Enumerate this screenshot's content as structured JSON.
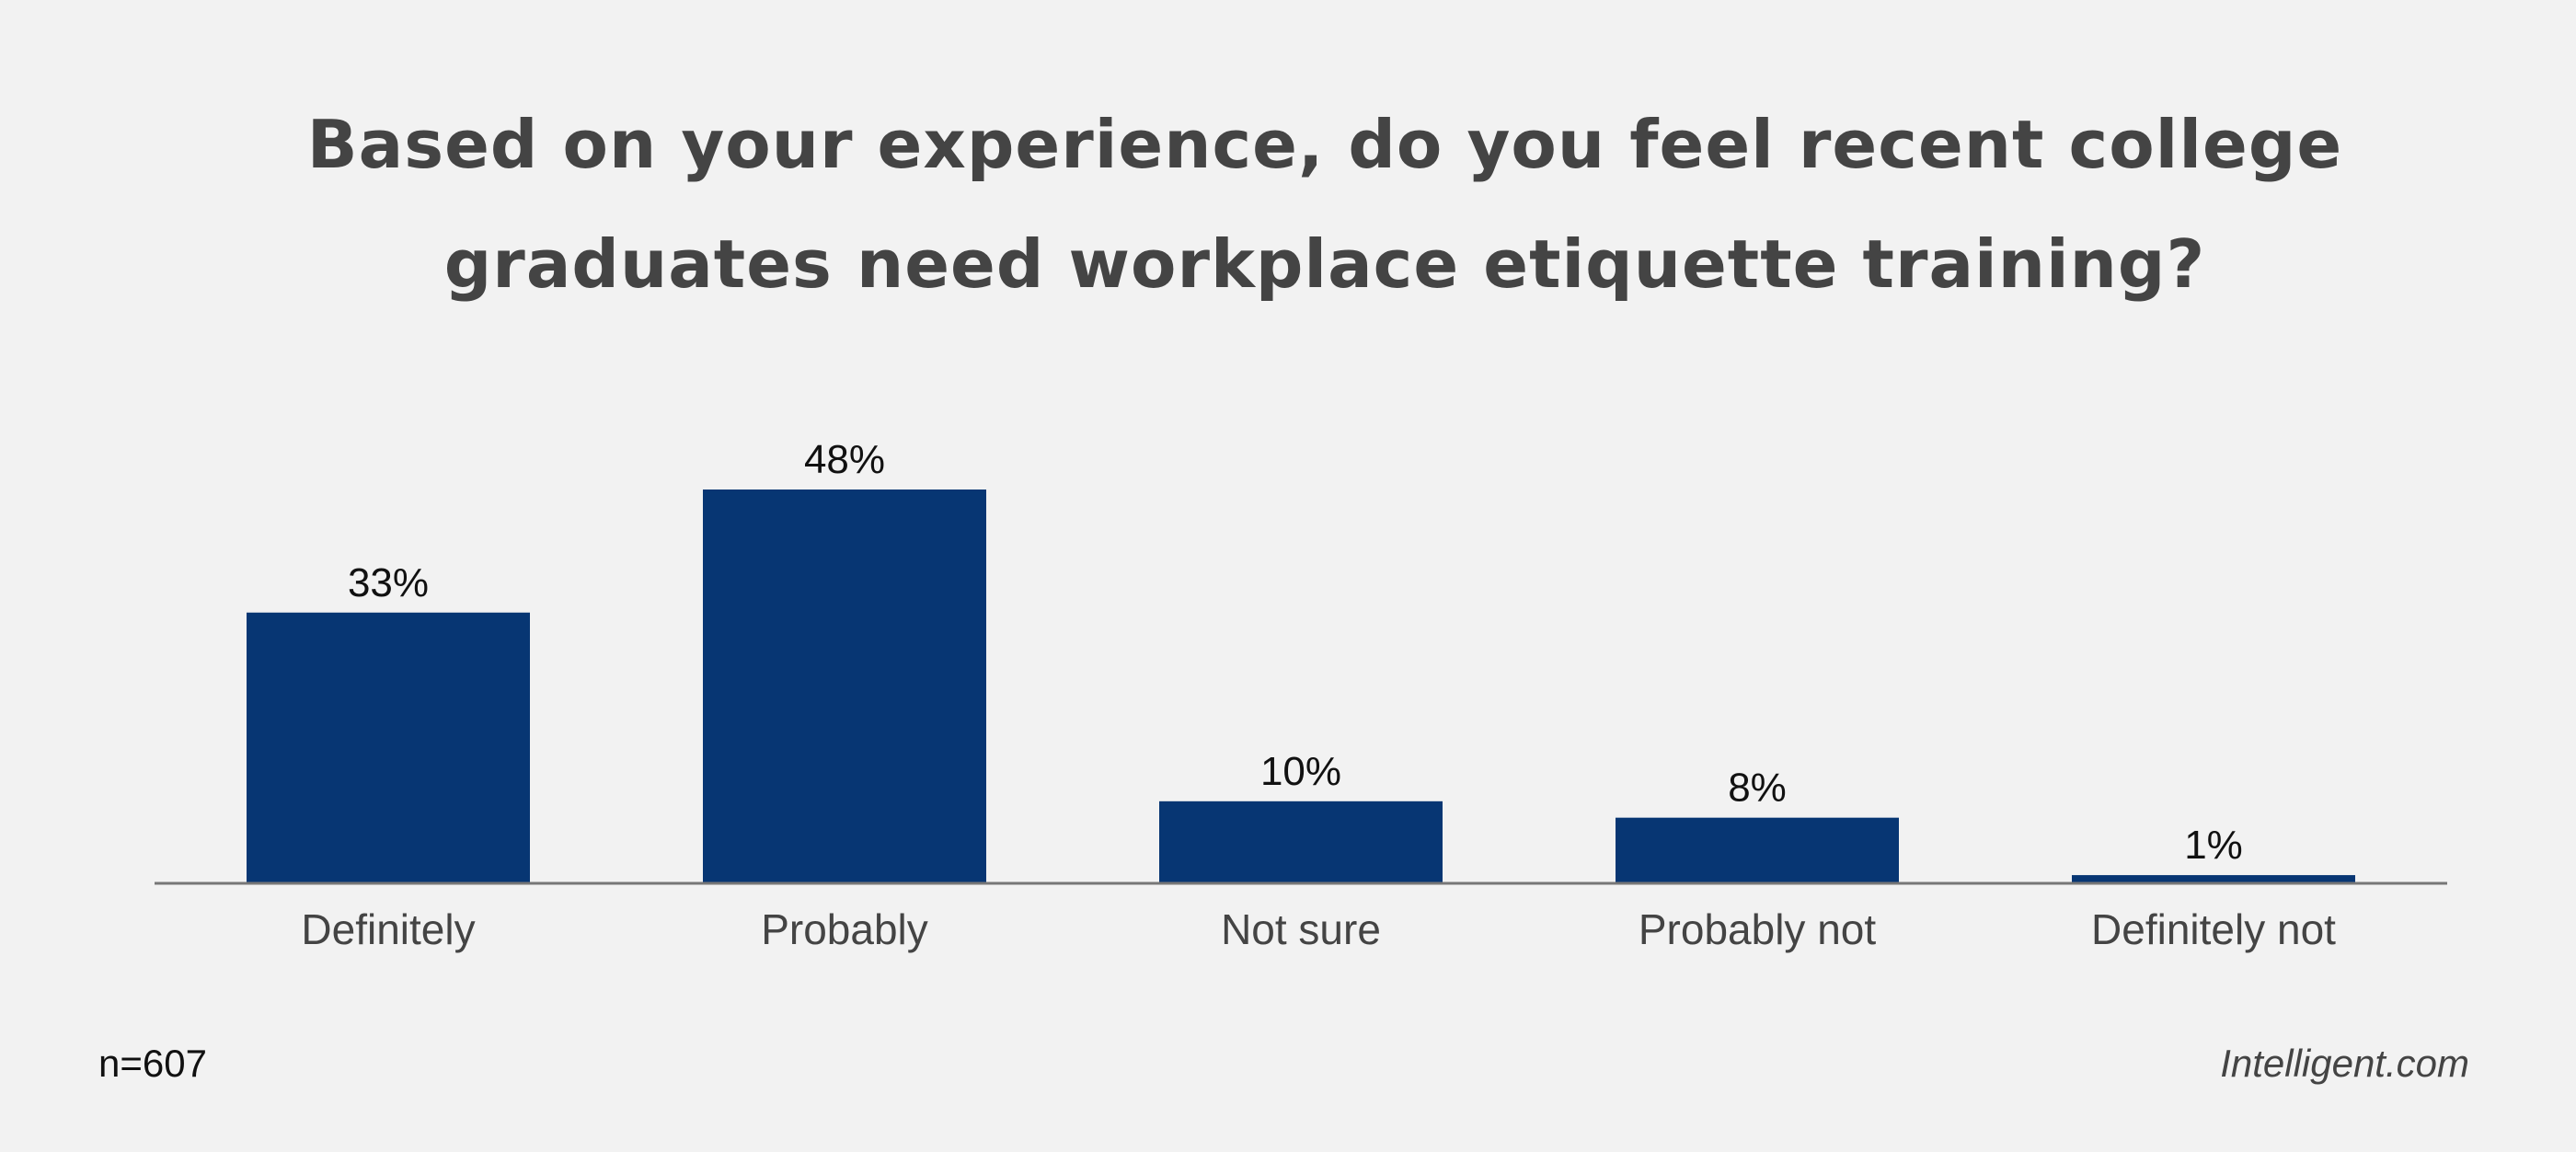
{
  "chart_data": {
    "type": "bar",
    "title_lines": [
      "Based on your experience, do you feel recent college",
      "graduates need workplace etiquette training?"
    ],
    "categories": [
      "Definitely",
      "Probably",
      "Not sure",
      "Probably not",
      "Definitely not"
    ],
    "values": [
      33,
      48,
      10,
      8,
      1
    ],
    "value_labels": [
      "33%",
      "48%",
      "10%",
      "8%",
      "1%"
    ],
    "ylim": [
      0,
      48
    ],
    "grid": false,
    "legend": "none",
    "bar_color": "#073673",
    "axis_color": "#777777"
  },
  "footer": {
    "sample_size": "n=607",
    "brand": "Intelligent.com"
  }
}
